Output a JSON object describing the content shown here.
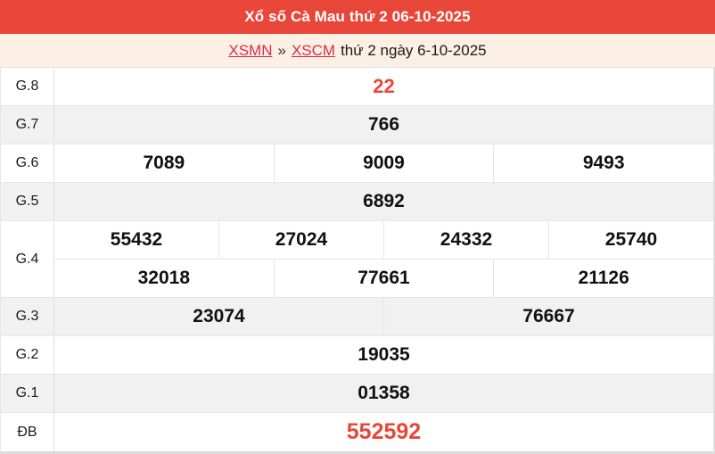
{
  "header": {
    "title": "Xổ số Cà Mau thứ 2 06-10-2025"
  },
  "breadcrumb": {
    "link_region": "XSMN",
    "separator": "»",
    "link_station": "XSCM",
    "suffix": "thứ 2 ngày 6-10-2025"
  },
  "table": {
    "rows": [
      {
        "label": "G.8",
        "values": [
          "22"
        ]
      },
      {
        "label": "G.7",
        "values": [
          "766"
        ]
      },
      {
        "label": "G.6",
        "values": [
          "7089",
          "9009",
          "9493"
        ]
      },
      {
        "label": "G.5",
        "values": [
          "6892"
        ]
      },
      {
        "label": "G.4",
        "lines": [
          [
            "55432",
            "27024",
            "24332",
            "25740"
          ],
          [
            "32018",
            "77661",
            "21126"
          ]
        ]
      },
      {
        "label": "G.3",
        "values": [
          "23074",
          "76667"
        ]
      },
      {
        "label": "G.2",
        "values": [
          "19035"
        ]
      },
      {
        "label": "G.1",
        "values": [
          "01358"
        ]
      },
      {
        "label": "ĐB",
        "values": [
          "552592"
        ]
      }
    ]
  },
  "colors": {
    "header_bg": "#e9463a",
    "accent_number_red": "#e9463a",
    "link_red": "#d92c49",
    "row_alt_bg": "#f1f1f1",
    "band_bg": "#fcf0e5",
    "border": "#e6e6e6"
  }
}
